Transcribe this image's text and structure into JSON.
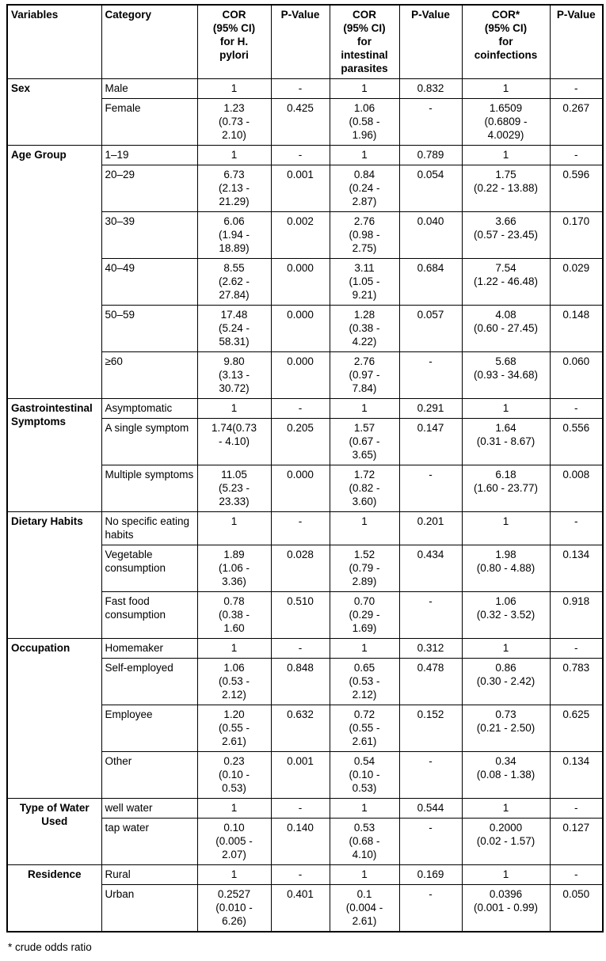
{
  "table": {
    "headers": [
      "Variables",
      "Category",
      "COR\n(95% CI)\nfor H.\npylori",
      "P-Value",
      "COR\n(95% CI)\nfor\nintestinal\nparasites",
      "P-Value",
      "COR*\n(95% CI)\nfor\ncoinfections",
      "P-Value"
    ],
    "groups": [
      {
        "variable": "Sex",
        "align": "left",
        "rows": [
          {
            "category": "Male",
            "cells": [
              "1",
              "-",
              "1",
              "0.832",
              "1",
              "-"
            ]
          },
          {
            "category": "Female",
            "cells": [
              "1.23\n(0.73 -\n2.10)",
              "0.425",
              "1.06\n(0.58 -\n1.96)",
              "-",
              "1.6509\n(0.6809 -\n4.0029)",
              "0.267"
            ]
          }
        ]
      },
      {
        "variable": "Age Group",
        "align": "left",
        "rows": [
          {
            "category": "1–19",
            "cells": [
              "1",
              "-",
              "1",
              "0.789",
              "1",
              "-"
            ]
          },
          {
            "category": "20–29",
            "cells": [
              "6.73\n(2.13 -\n21.29)",
              "0.001",
              "0.84\n(0.24 -\n2.87)",
              "0.054",
              "1.75\n(0.22 - 13.88)",
              "0.596"
            ]
          },
          {
            "category": "30–39",
            "cells": [
              "6.06\n(1.94 -\n18.89)",
              "0.002",
              "2.76\n(0.98 -\n2.75)",
              "0.040",
              "3.66\n(0.57 - 23.45)",
              "0.170"
            ]
          },
          {
            "category": "40–49",
            "cells": [
              "8.55\n(2.62 -\n27.84)",
              "0.000",
              "3.11\n(1.05 -\n9.21)",
              "0.684",
              "7.54\n(1.22 - 46.48)",
              "0.029"
            ]
          },
          {
            "category": "50–59",
            "cells": [
              "17.48\n(5.24 -\n58.31)",
              "0.000",
              "1.28\n(0.38 -\n4.22)",
              "0.057",
              "4.08\n(0.60 - 27.45)",
              "0.148"
            ]
          },
          {
            "category": "≥60",
            "cells": [
              "9.80\n(3.13 -\n30.72)",
              "0.000",
              "2.76\n(0.97 -\n7.84)",
              "-",
              "5.68\n(0.93 - 34.68)",
              "0.060"
            ]
          }
        ]
      },
      {
        "variable": "Gastrointestinal Symptoms",
        "align": "left",
        "rows": [
          {
            "category": "Asymptomatic",
            "cells": [
              "1",
              "-",
              "1",
              "0.291",
              "1",
              "-"
            ]
          },
          {
            "category": "A single symptom",
            "cells": [
              "1.74(0.73\n- 4.10)",
              "0.205",
              "1.57\n(0.67 -\n3.65)",
              "0.147",
              "1.64\n(0.31 - 8.67)",
              "0.556"
            ]
          },
          {
            "category": "Multiple symptoms",
            "cells": [
              "11.05\n(5.23 -\n23.33)",
              "0.000",
              "1.72\n(0.82 -\n3.60)",
              "-",
              "6.18\n(1.60 - 23.77)",
              "0.008"
            ]
          }
        ]
      },
      {
        "variable": "Dietary Habits",
        "align": "left",
        "rows": [
          {
            "category": "No specific eating habits",
            "cells": [
              "1",
              "-",
              "1",
              "0.201",
              "1",
              "-"
            ]
          },
          {
            "category": "Vegetable consumption",
            "cells": [
              "1.89\n(1.06 -\n3.36)",
              "0.028",
              "1.52\n(0.79 -\n2.89)",
              "0.434",
              "1.98\n(0.80 - 4.88)",
              "0.134"
            ]
          },
          {
            "category": "Fast food consumption",
            "cells": [
              "0.78\n(0.38 -\n1.60",
              "0.510",
              "0.70\n(0.29 -\n1.69)",
              "-",
              "1.06\n(0.32 - 3.52)",
              "0.918"
            ]
          }
        ]
      },
      {
        "variable": "Occupation",
        "align": "left",
        "rows": [
          {
            "category": "Homemaker",
            "cells": [
              "1",
              "-",
              "1",
              "0.312",
              "1",
              "-"
            ]
          },
          {
            "category": "Self-employed",
            "cells": [
              "1.06\n(0.53 -\n2.12)",
              "0.848",
              "0.65\n(0.53 -\n2.12)",
              "0.478",
              "0.86\n(0.30 - 2.42)",
              "0.783"
            ]
          },
          {
            "category": "Employee",
            "cells": [
              "1.20\n(0.55 -\n2.61)",
              "0.632",
              "0.72\n(0.55 -\n2.61)",
              "0.152",
              "0.73\n(0.21 - 2.50)",
              "0.625"
            ]
          },
          {
            "category": "Other",
            "cells": [
              "0.23\n(0.10 -\n0.53)",
              "0.001",
              "0.54\n(0.10 -\n0.53)",
              "-",
              "0.34\n(0.08 - 1.38)",
              "0.134"
            ]
          }
        ]
      },
      {
        "variable": "Type of Water Used",
        "align": "center",
        "rows": [
          {
            "category": "well water",
            "cells": [
              "1",
              "-",
              "1",
              "0.544",
              "1",
              "-"
            ]
          },
          {
            "category": "tap water",
            "cells": [
              "0.10\n(0.005 -\n2.07)",
              "0.140",
              "0.53\n(0.68 -\n4.10)",
              "-",
              "0.2000\n(0.02 - 1.57)",
              "0.127"
            ]
          }
        ]
      },
      {
        "variable": "Residence",
        "align": "center",
        "rows": [
          {
            "category": "Rural",
            "cells": [
              "1",
              "-",
              "1",
              "0.169",
              "1",
              "-"
            ]
          },
          {
            "category": "Urban",
            "cells": [
              "0.2527\n(0.010 -\n6.26)",
              "0.401",
              "0.1\n(0.004 -\n2.61)",
              "-",
              "0.0396\n(0.001 - 0.99)",
              "0.050"
            ]
          }
        ]
      }
    ],
    "footnote": "* crude odds ratio"
  }
}
